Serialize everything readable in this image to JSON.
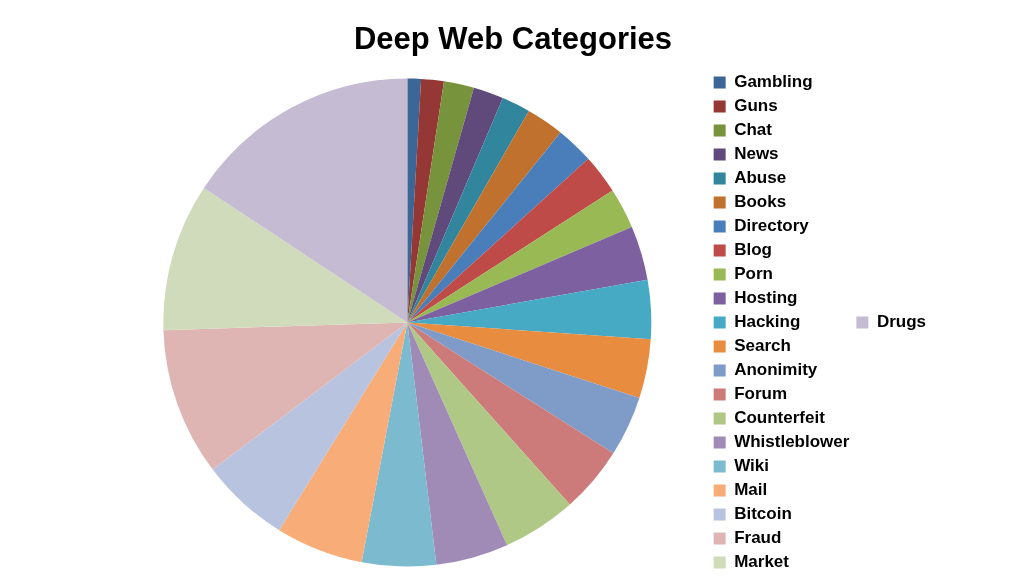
{
  "chart_data": {
    "type": "pie",
    "title": "Deep Web Categories",
    "categories": [
      "Gambling",
      "Guns",
      "Chat",
      "News",
      "Abuse",
      "Books",
      "Directory",
      "Blog",
      "Porn",
      "Hosting",
      "Hacking",
      "Search",
      "Anonimity",
      "Forum",
      "Counterfeit",
      "Whistleblower",
      "Wiki",
      "Mail",
      "Bitcoin",
      "Fraud",
      "Market",
      "Drugs"
    ],
    "values": [
      0.9,
      1.5,
      2.0,
      2.0,
      1.9,
      2.5,
      2.5,
      2.6,
      2.7,
      3.6,
      3.9,
      3.9,
      4.0,
      4.4,
      4.9,
      4.8,
      4.9,
      5.8,
      5.9,
      9.8,
      9.8,
      15.7
    ],
    "colors": [
      "#3c6696",
      "#953735",
      "#77933c",
      "#604a7b",
      "#31859c",
      "#c0712d",
      "#4a7ebb",
      "#be4b48",
      "#98b954",
      "#7d60a0",
      "#46aac5",
      "#e88c3f",
      "#7f9cc9",
      "#cc7b7a",
      "#b0c886",
      "#a08bb7",
      "#7cbad0",
      "#f8ac78",
      "#b7c3df",
      "#dfb5b4",
      "#d0dbbb",
      "#c5bbd2"
    ],
    "legend": "right"
  }
}
